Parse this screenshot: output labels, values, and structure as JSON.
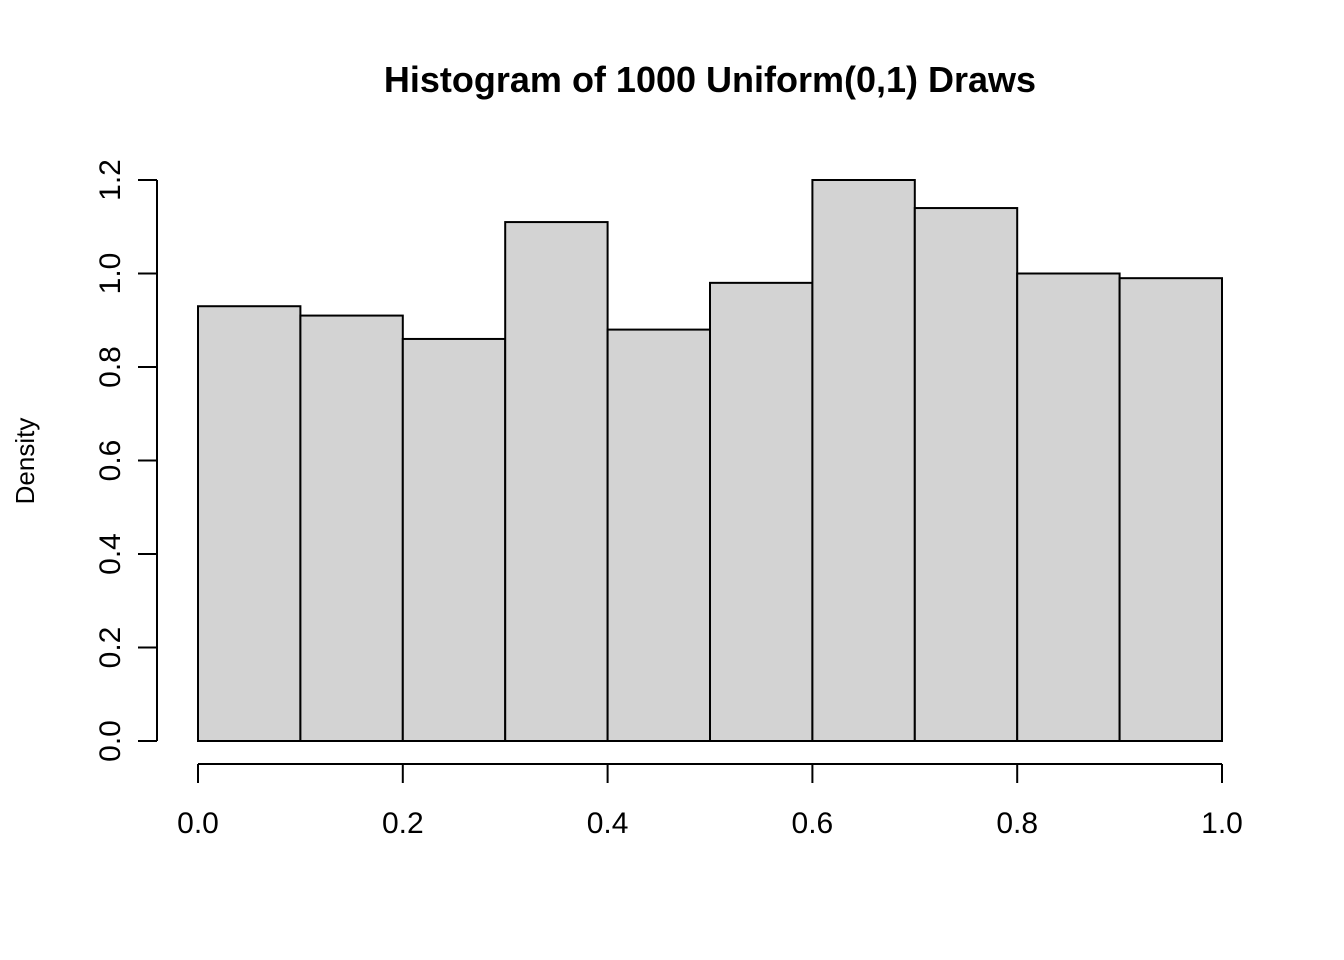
{
  "chart_data": {
    "type": "bar",
    "title": "Histogram of 1000 Uniform(0,1) Draws",
    "xlabel": "",
    "ylabel": "Density",
    "bins": [
      {
        "start": 0.0,
        "end": 0.1,
        "density": 0.93
      },
      {
        "start": 0.1,
        "end": 0.2,
        "density": 0.91
      },
      {
        "start": 0.2,
        "end": 0.3,
        "density": 0.86
      },
      {
        "start": 0.3,
        "end": 0.4,
        "density": 1.11
      },
      {
        "start": 0.4,
        "end": 0.5,
        "density": 0.88
      },
      {
        "start": 0.5,
        "end": 0.6,
        "density": 0.98
      },
      {
        "start": 0.6,
        "end": 0.7,
        "density": 1.2
      },
      {
        "start": 0.7,
        "end": 0.8,
        "density": 1.14
      },
      {
        "start": 0.8,
        "end": 0.9,
        "density": 1.0
      },
      {
        "start": 0.9,
        "end": 1.0,
        "density": 0.99
      }
    ],
    "xlim": [
      0,
      1
    ],
    "ylim": [
      0,
      1.2
    ],
    "x_ticks": [
      {
        "value": 0.0,
        "label": "0.0"
      },
      {
        "value": 0.2,
        "label": "0.2"
      },
      {
        "value": 0.4,
        "label": "0.4"
      },
      {
        "value": 0.6,
        "label": "0.6"
      },
      {
        "value": 0.8,
        "label": "0.8"
      },
      {
        "value": 1.0,
        "label": "1.0"
      }
    ],
    "y_ticks": [
      {
        "value": 0.0,
        "label": "0.0"
      },
      {
        "value": 0.2,
        "label": "0.2"
      },
      {
        "value": 0.4,
        "label": "0.4"
      },
      {
        "value": 0.6,
        "label": "0.6"
      },
      {
        "value": 0.8,
        "label": "0.8"
      },
      {
        "value": 1.0,
        "label": "1.0"
      },
      {
        "value": 1.2,
        "label": "1.2"
      }
    ],
    "bar_color": "#d3d3d3",
    "border_color": "#000000",
    "grid": false,
    "legend": "none"
  }
}
